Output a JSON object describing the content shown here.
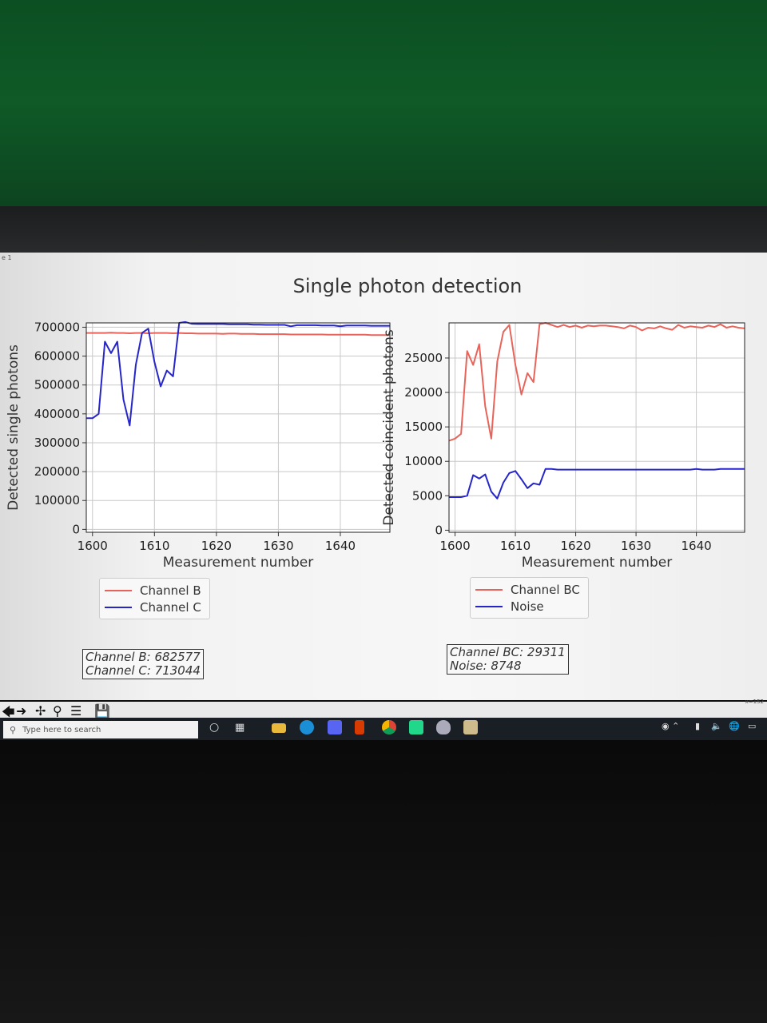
{
  "window": {
    "label": "e 1"
  },
  "figure_title": "Single photon detection",
  "chart_data": [
    {
      "type": "line",
      "xlabel": "Measurement number",
      "ylabel": "Detected single photons",
      "xlim": [
        1599,
        1648
      ],
      "ylim": [
        -10000,
        715000
      ],
      "xticks": [
        1600,
        1610,
        1620,
        1630,
        1640
      ],
      "yticks": [
        0,
        100000,
        200000,
        300000,
        400000,
        500000,
        600000,
        700000
      ],
      "grid": true,
      "legend_position": "below",
      "x": [
        1599,
        1600,
        1601,
        1602,
        1603,
        1604,
        1605,
        1606,
        1607,
        1608,
        1609,
        1610,
        1611,
        1612,
        1613,
        1614,
        1615,
        1616,
        1617,
        1618,
        1619,
        1620,
        1621,
        1622,
        1623,
        1624,
        1625,
        1626,
        1627,
        1628,
        1629,
        1630,
        1631,
        1632,
        1633,
        1634,
        1635,
        1636,
        1637,
        1638,
        1639,
        1640,
        1641,
        1642,
        1643,
        1644,
        1645,
        1646,
        1647,
        1648
      ],
      "series": [
        {
          "name": "Channel B",
          "color": "#e8645a",
          "values": [
            680000,
            680000,
            680000,
            680000,
            681000,
            680000,
            680000,
            679000,
            680000,
            680000,
            679000,
            680000,
            680000,
            680000,
            679000,
            680000,
            679000,
            679000,
            678000,
            678000,
            678000,
            678000,
            677000,
            678000,
            678000,
            677000,
            677000,
            677000,
            676000,
            676000,
            676000,
            676000,
            676000,
            675000,
            675000,
            675000,
            675000,
            675000,
            675000,
            674000,
            674000,
            674000,
            674000,
            674000,
            674000,
            674000,
            673000,
            673000,
            673000,
            673000
          ]
        },
        {
          "name": "Channel C",
          "color": "#2626c8",
          "values": [
            385000,
            385000,
            400000,
            650000,
            610000,
            650000,
            450000,
            360000,
            570000,
            680000,
            695000,
            580000,
            495000,
            550000,
            530000,
            715000,
            718000,
            712000,
            711000,
            711000,
            711000,
            711000,
            711000,
            710000,
            710000,
            710000,
            710000,
            709000,
            709000,
            708000,
            708000,
            708000,
            708000,
            703000,
            707000,
            707000,
            707000,
            707000,
            706000,
            706000,
            706000,
            703000,
            706000,
            706000,
            706000,
            706000,
            705000,
            705000,
            705000,
            705000
          ]
        }
      ]
    },
    {
      "type": "line",
      "xlabel": "Measurement number",
      "ylabel": "Detected coincident photons",
      "xlim": [
        1599,
        1648
      ],
      "ylim": [
        -300,
        30100
      ],
      "xticks": [
        1600,
        1610,
        1620,
        1630,
        1640
      ],
      "yticks": [
        0,
        5000,
        10000,
        15000,
        20000,
        25000
      ],
      "grid": true,
      "legend_position": "below",
      "x": [
        1599,
        1600,
        1601,
        1602,
        1603,
        1604,
        1605,
        1606,
        1607,
        1608,
        1609,
        1610,
        1611,
        1612,
        1613,
        1614,
        1615,
        1616,
        1617,
        1618,
        1619,
        1620,
        1621,
        1622,
        1623,
        1624,
        1625,
        1626,
        1627,
        1628,
        1629,
        1630,
        1631,
        1632,
        1633,
        1634,
        1635,
        1636,
        1637,
        1638,
        1639,
        1640,
        1641,
        1642,
        1643,
        1644,
        1645,
        1646,
        1647,
        1648
      ],
      "series": [
        {
          "name": "Channel BC",
          "color": "#e8645a",
          "values": [
            13000,
            13300,
            14000,
            26000,
            24000,
            27000,
            18000,
            13300,
            24500,
            28800,
            29800,
            24000,
            19700,
            22800,
            21500,
            29900,
            30100,
            29800,
            29500,
            29800,
            29500,
            29700,
            29400,
            29700,
            29600,
            29700,
            29700,
            29600,
            29500,
            29300,
            29700,
            29500,
            29000,
            29400,
            29300,
            29600,
            29300,
            29100,
            29800,
            29400,
            29600,
            29500,
            29400,
            29700,
            29500,
            29900,
            29400,
            29600,
            29400,
            29300
          ]
        },
        {
          "name": "Noise",
          "color": "#2626c8",
          "values": [
            4800,
            4800,
            4800,
            5000,
            8000,
            7500,
            8100,
            5600,
            4600,
            6900,
            8300,
            8600,
            7400,
            6100,
            6800,
            6600,
            8900,
            8900,
            8800,
            8800,
            8800,
            8800,
            8800,
            8800,
            8800,
            8800,
            8800,
            8800,
            8800,
            8800,
            8800,
            8800,
            8800,
            8800,
            8800,
            8800,
            8800,
            8800,
            8800,
            8800,
            8800,
            8900,
            8800,
            8800,
            8800,
            8900,
            8900,
            8900,
            8900,
            8900
          ]
        }
      ]
    }
  ],
  "readouts": {
    "left": {
      "line1": "Channel B: 682577",
      "line2": "Channel C: 713044"
    },
    "right": {
      "line1": "Channel BC: 29311",
      "line2": "Noise: 8748"
    }
  },
  "toolbar": {
    "icons": [
      "arrow-left-icon",
      "arrow-right-icon",
      "move-icon",
      "zoom-icon",
      "configure-icon",
      "save-icon"
    ],
    "coords": "x=152"
  },
  "taskbar": {
    "search_placeholder": "Type here to search",
    "apps": [
      "cortana-icon",
      "task-view-icon",
      "file-explorer-icon",
      "edge-icon",
      "discord-icon",
      "office-icon",
      "chrome-icon",
      "pycharm-icon",
      "game-icon",
      "python-icon"
    ]
  }
}
